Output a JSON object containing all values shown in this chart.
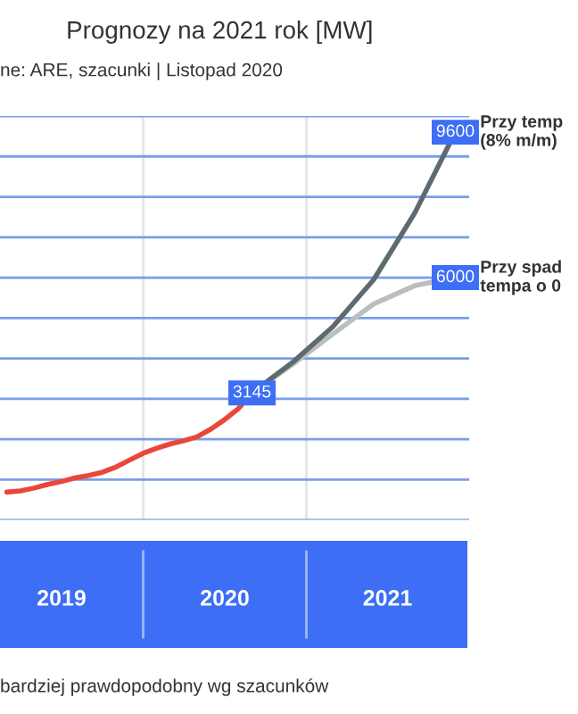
{
  "chart_data": {
    "type": "line",
    "title": "Prognozy na 2021 rok [MW]",
    "subtitle": "ne: ARE, szacunki | Listopad 2020",
    "xlim": [
      "2019-02-14",
      "2022-01-01"
    ],
    "xticks": [
      {
        "value": "2019-07-02",
        "label": "2019"
      },
      {
        "value": "2020-07-02",
        "label": "2020"
      },
      {
        "value": "2021-07-02",
        "label": "2021"
      }
    ],
    "ylim": [
      0,
      10000
    ],
    "yticks": [
      {
        "value": 0,
        "label": null
      },
      {
        "value": 1000,
        "label": null
      },
      {
        "value": 2000,
        "label": null
      },
      {
        "value": 3000,
        "label": null
      },
      {
        "value": 4000,
        "label": null
      },
      {
        "value": 5000,
        "label": null
      },
      {
        "value": 6000,
        "label": null
      },
      {
        "value": 7000,
        "label": null
      },
      {
        "value": 8000,
        "label": null
      },
      {
        "value": 9000,
        "label": null
      },
      {
        "value": 10000,
        "label": null
      }
    ],
    "tick_labels": "x",
    "grid": "y",
    "legend": false,
    "marker": "none",
    "line_style": "solid",
    "ref_lines": [
      {
        "axis": "x",
        "value": "2020-01-01",
        "label": null,
        "color": "#e4e4e4"
      },
      {
        "axis": "x",
        "value": "2021-01-01",
        "label": null,
        "color": "#e4e4e4"
      }
    ],
    "series": [
      {
        "color": "#e8473a",
        "x": [
          "2019-03",
          "2019-04",
          "2019-05",
          "2019-06",
          "2019-07",
          "2019-08",
          "2019-09",
          "2019-10",
          "2019-11",
          "2019-12",
          "2020-01",
          "2020-02",
          "2020-03",
          "2020-04",
          "2020-05",
          "2020-06",
          "2020-07",
          "2020-08",
          "2020-09"
        ],
        "values": [
          690,
          720,
          790,
          880,
          950,
          1040,
          1100,
          1180,
          1310,
          1480,
          1650,
          1780,
          1880,
          1960,
          2060,
          2250,
          2480,
          2750,
          3145
        ],
        "value_labels": [
          null,
          null,
          null,
          null,
          null,
          null,
          null,
          null,
          null,
          null,
          null,
          null,
          null,
          null,
          null,
          null,
          null,
          null,
          "3145"
        ]
      },
      {
        "color": "#5d6b70",
        "x": [
          "2020-09",
          "2020-12",
          "2021-03",
          "2021-06",
          "2021-09",
          "2021-12"
        ],
        "values": [
          3145,
          3900,
          4780,
          5950,
          7600,
          9600
        ],
        "value_labels": [
          null,
          null,
          null,
          null,
          null,
          "9600"
        ]
      },
      {
        "color": "#b9bebe",
        "x": [
          "2020-09",
          "2020-12",
          "2021-03",
          "2021-06",
          "2021-09",
          "2021-12"
        ],
        "values": [
          3145,
          3850,
          4600,
          5350,
          5800,
          6000
        ],
        "value_labels": [
          null,
          null,
          null,
          null,
          null,
          "6000"
        ]
      }
    ],
    "annotations": [
      {
        "text": "Przy temp\n(8% m/m)",
        "x": "2021-12",
        "y": 9600
      },
      {
        "text": "Przy spad\ntempa o 0",
        "x": "2021-12",
        "y": 6000
      },
      "bardziej prawdopodobny wg szacunków"
    ]
  }
}
